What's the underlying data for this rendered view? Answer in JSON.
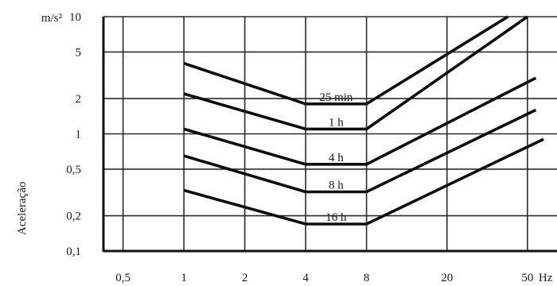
{
  "chart_data": {
    "type": "line",
    "x_scale": "log",
    "y_scale": "log",
    "xlim": [
      0.4,
      70
    ],
    "ylim": [
      0.1,
      10
    ],
    "grid": true,
    "legend": "none",
    "y_title": "Aceleração",
    "y_unit": "m/s²",
    "x_unit": "Hz",
    "x_ticks": [
      {
        "value": 0.5,
        "label": "0,5"
      },
      {
        "value": 1,
        "label": "1"
      },
      {
        "value": 2,
        "label": "2"
      },
      {
        "value": 4,
        "label": "4"
      },
      {
        "value": 8,
        "label": "8"
      },
      {
        "value": 20,
        "label": "20"
      },
      {
        "value": 50,
        "label": "50"
      }
    ],
    "y_ticks": [
      {
        "value": 0.1,
        "label": "0,1"
      },
      {
        "value": 0.2,
        "label": "0,2"
      },
      {
        "value": 0.5,
        "label": "0,5"
      },
      {
        "value": 1,
        "label": "1"
      },
      {
        "value": 2,
        "label": "2"
      },
      {
        "value": 5,
        "label": "5"
      },
      {
        "value": 10,
        "label": "10"
      }
    ],
    "series": [
      {
        "name": "25 min",
        "points": [
          [
            1,
            4.0
          ],
          [
            4,
            1.8
          ],
          [
            8,
            1.8
          ],
          [
            40,
            10
          ]
        ]
      },
      {
        "name": "1 h",
        "points": [
          [
            1,
            2.2
          ],
          [
            4,
            1.1
          ],
          [
            8,
            1.1
          ],
          [
            50,
            10
          ]
        ]
      },
      {
        "name": "4 h",
        "points": [
          [
            1,
            1.1
          ],
          [
            4,
            0.55
          ],
          [
            8,
            0.55
          ],
          [
            55,
            3.0
          ]
        ]
      },
      {
        "name": "8 h",
        "points": [
          [
            1,
            0.65
          ],
          [
            4,
            0.32
          ],
          [
            8,
            0.32
          ],
          [
            55,
            1.6
          ]
        ]
      },
      {
        "name": "16 h",
        "points": [
          [
            1,
            0.33
          ],
          [
            4,
            0.17
          ],
          [
            8,
            0.17
          ],
          [
            60,
            0.9
          ]
        ]
      }
    ]
  }
}
